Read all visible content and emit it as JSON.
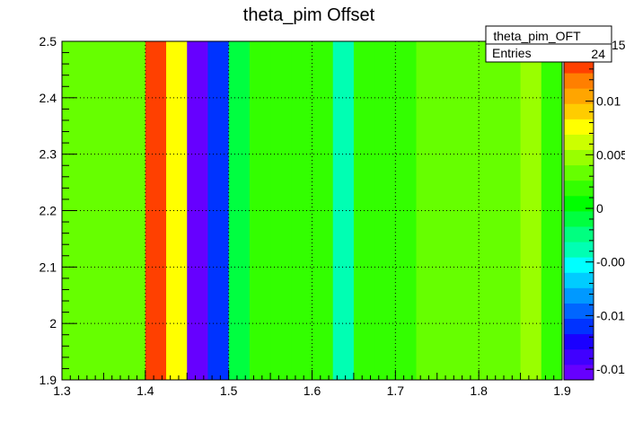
{
  "chart_data": {
    "type": "heatmap",
    "title": "theta_pim Offset",
    "xlabel": "",
    "ylabel": "",
    "xlim": [
      1.3,
      1.9
    ],
    "ylim": [
      1.9,
      2.5
    ],
    "x_tick_labels": [
      "1.3",
      "1.4",
      "1.5",
      "1.6",
      "1.7",
      "1.8",
      "1.9"
    ],
    "y_tick_labels": [
      "1.9",
      "2",
      "2.1",
      "2.2",
      "2.3",
      "2.4",
      "2.5"
    ],
    "grid": true,
    "column_edges": [
      1.3,
      1.4,
      1.425,
      1.45,
      1.475,
      1.5,
      1.525,
      1.55,
      1.575,
      1.6,
      1.625,
      1.65,
      1.675,
      1.7,
      1.725,
      1.75,
      1.775,
      1.8,
      1.825,
      1.85,
      1.875,
      1.9
    ],
    "column_values": [
      0.0032,
      0.014,
      0.007,
      -0.015,
      -0.0115,
      -0.0005,
      0.0015,
      0.0015,
      0.0015,
      0.0015,
      -0.004,
      0.0015,
      0.0015,
      0.0015,
      0.0032,
      0.0032,
      0.0032,
      0.0032,
      0.0032,
      0.0045,
      0.0015
    ],
    "colorbar": {
      "range": [
        -0.016,
        0.0155
      ],
      "tick_values": [
        0.01,
        0.005,
        0,
        -0.005,
        -0.01,
        -0.015
      ],
      "tick_labels": [
        "0.01",
        "0.005",
        "0",
        "-0.00",
        "-0.01",
        "-0.01"
      ],
      "top_label": "15",
      "colors": [
        "#6600ff",
        "#4000ff",
        "#1a00ff",
        "#0033ff",
        "#0066ff",
        "#0099ff",
        "#00ccff",
        "#00ffff",
        "#00ffb3",
        "#00ff80",
        "#00ff40",
        "#00ff00",
        "#33ff00",
        "#66ff00",
        "#99ff00",
        "#ccff00",
        "#ffff00",
        "#ffcc00",
        "#ffa500",
        "#ff7f00",
        "#ff4000",
        "#ff0000"
      ]
    },
    "stats_box": {
      "name": "theta_pim_OFT",
      "entries_label": "Entries",
      "entries_value": "24"
    }
  }
}
